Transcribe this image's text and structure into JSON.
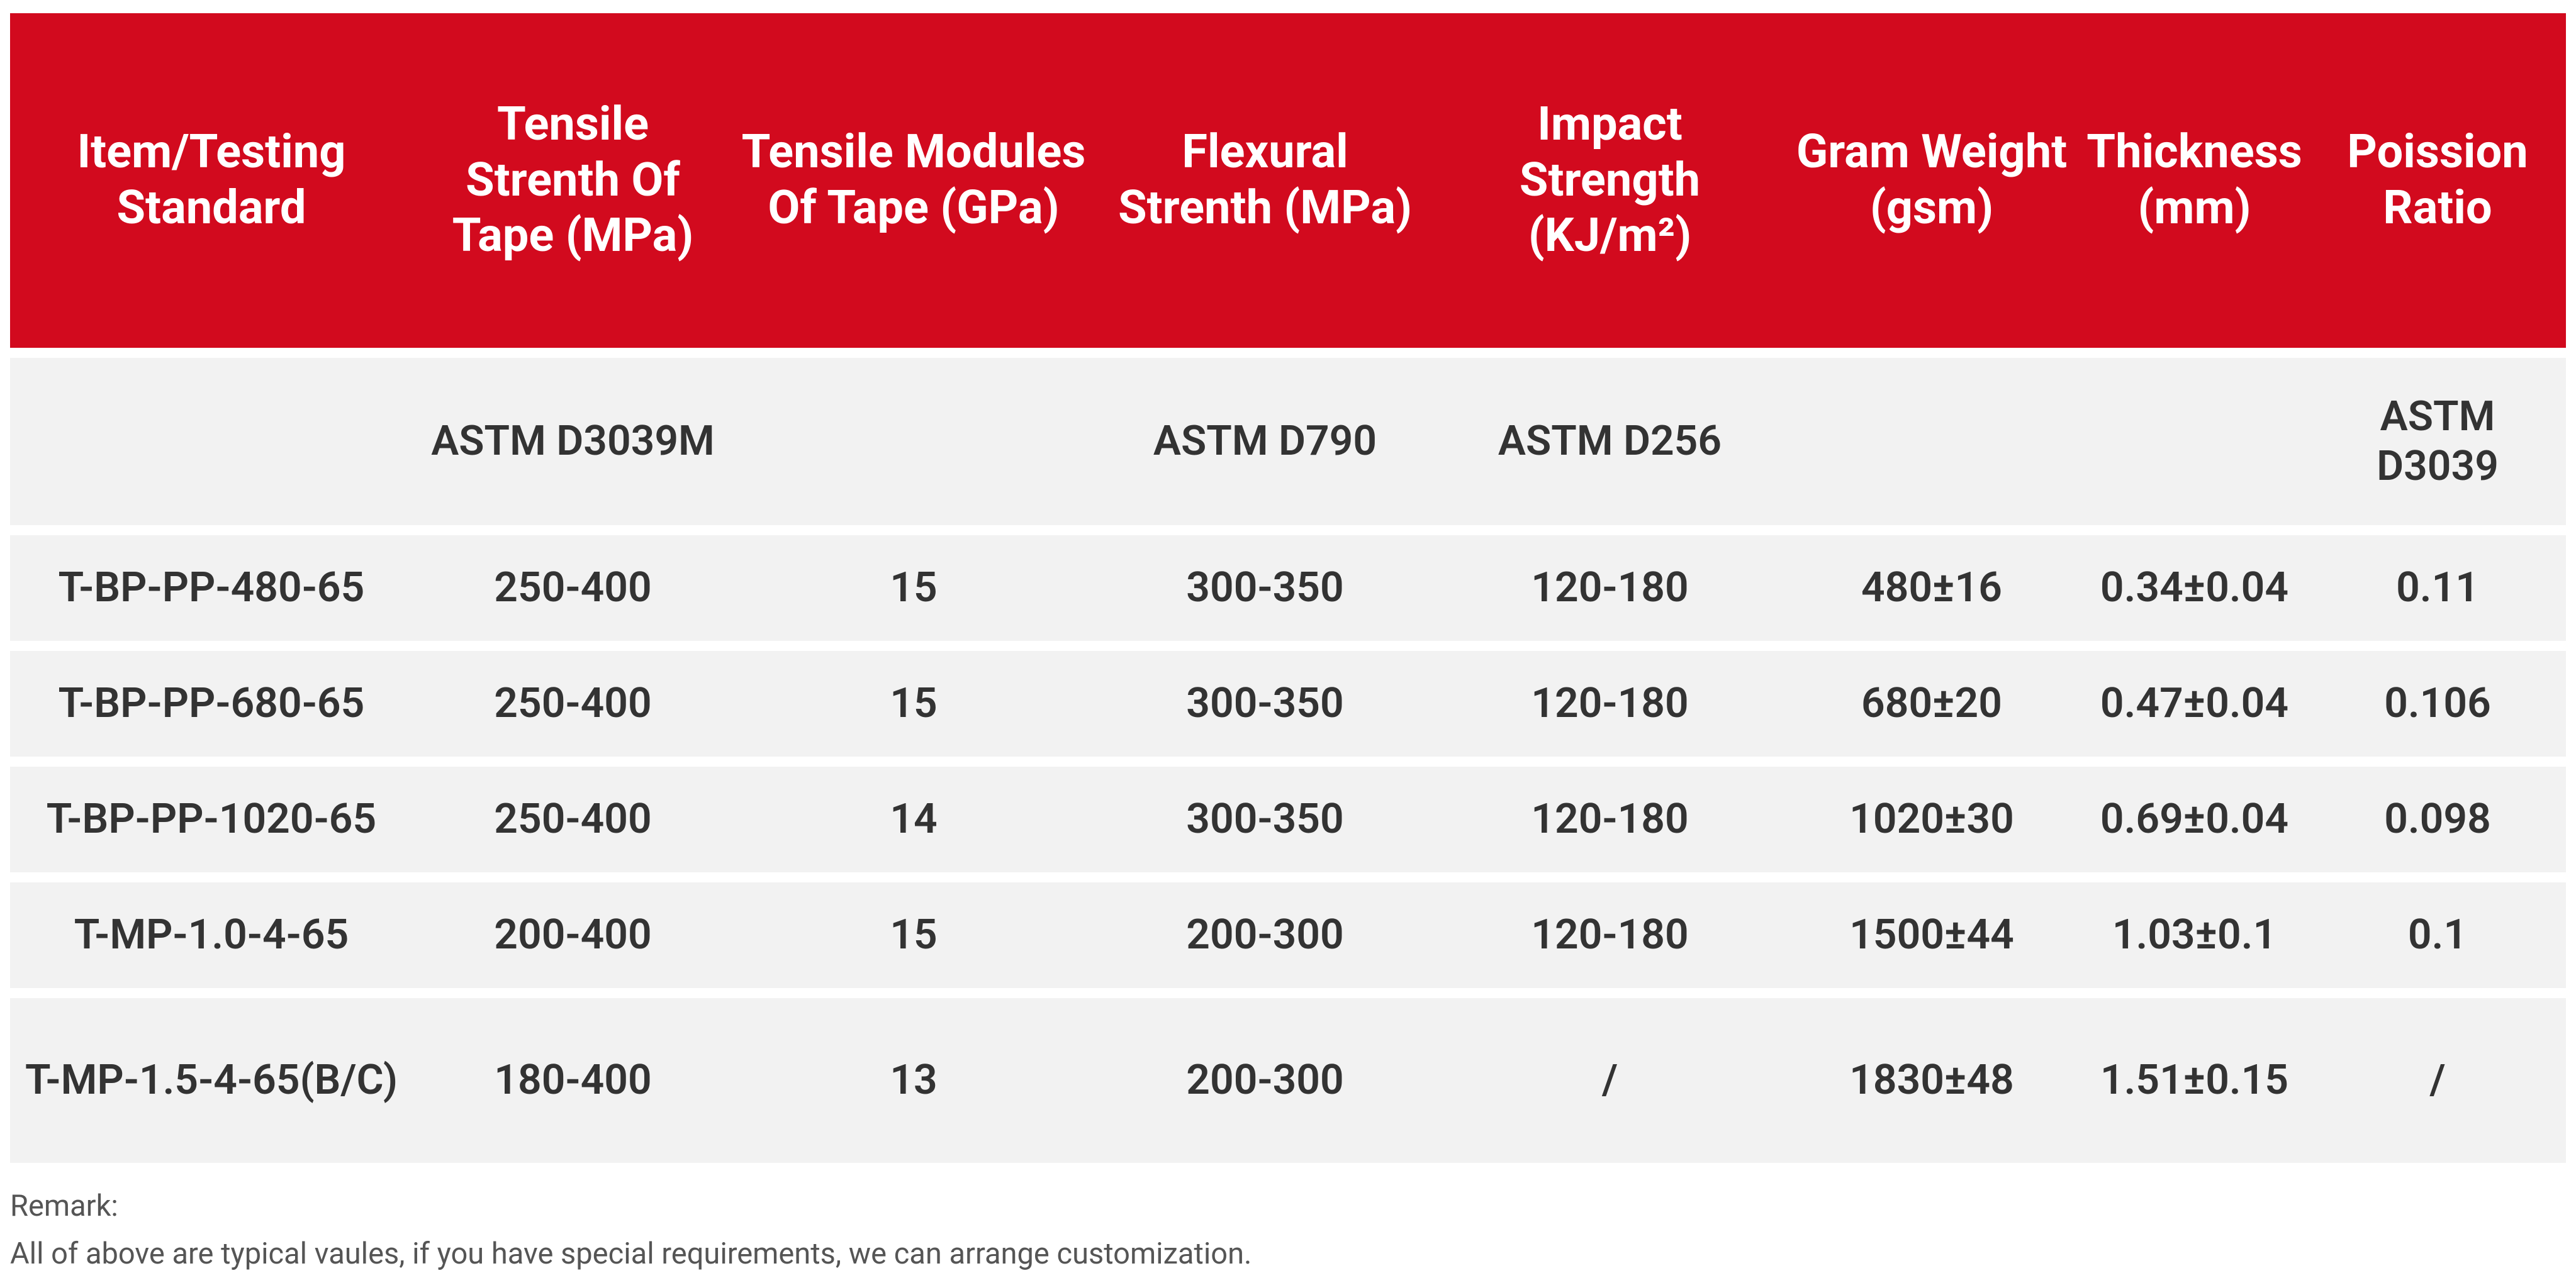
{
  "table": {
    "header": [
      "Item/Testing Standard",
      "Tensile Strenth Of Tape (MPa)",
      "Tensile Modules Of Tape (GPa)",
      "Flexural Strenth (MPa)",
      "Impact Strength (KJ/m²)",
      "Gram Weight (gsm)",
      "Thickness (mm)",
      "Poission Ratio"
    ],
    "standards": [
      null,
      "ASTM D3039M",
      null,
      "ASTM D790",
      "ASTM D256",
      null,
      null,
      "ASTM D3039"
    ],
    "rows": [
      [
        "T-BP-PP-480-65",
        "250-400",
        "15",
        "300-350",
        "120-180",
        "480±16",
        "0.34±0.04",
        "0.11"
      ],
      [
        "T-BP-PP-680-65",
        "250-400",
        "15",
        "300-350",
        "120-180",
        "680±20",
        "0.47±0.04",
        "0.106"
      ],
      [
        "T-BP-PP-1020-65",
        "250-400",
        "14",
        "300-350",
        "120-180",
        "1020±30",
        "0.69±0.04",
        "0.098"
      ],
      [
        "T-MP-1.0-4-65",
        "200-400",
        "15",
        "200-300",
        "120-180",
        "1500±44",
        "1.03±0.1",
        "0.1"
      ],
      [
        "T-MP-1.5-4-65(B/C)",
        "180-400",
        "13",
        "200-300",
        "/",
        "1830±48",
        "1.51±0.15",
        "/"
      ]
    ]
  },
  "remark": {
    "title": "Remark:",
    "text": "All of above are typical vaules, if you have special requirements, we can arrange customization."
  }
}
